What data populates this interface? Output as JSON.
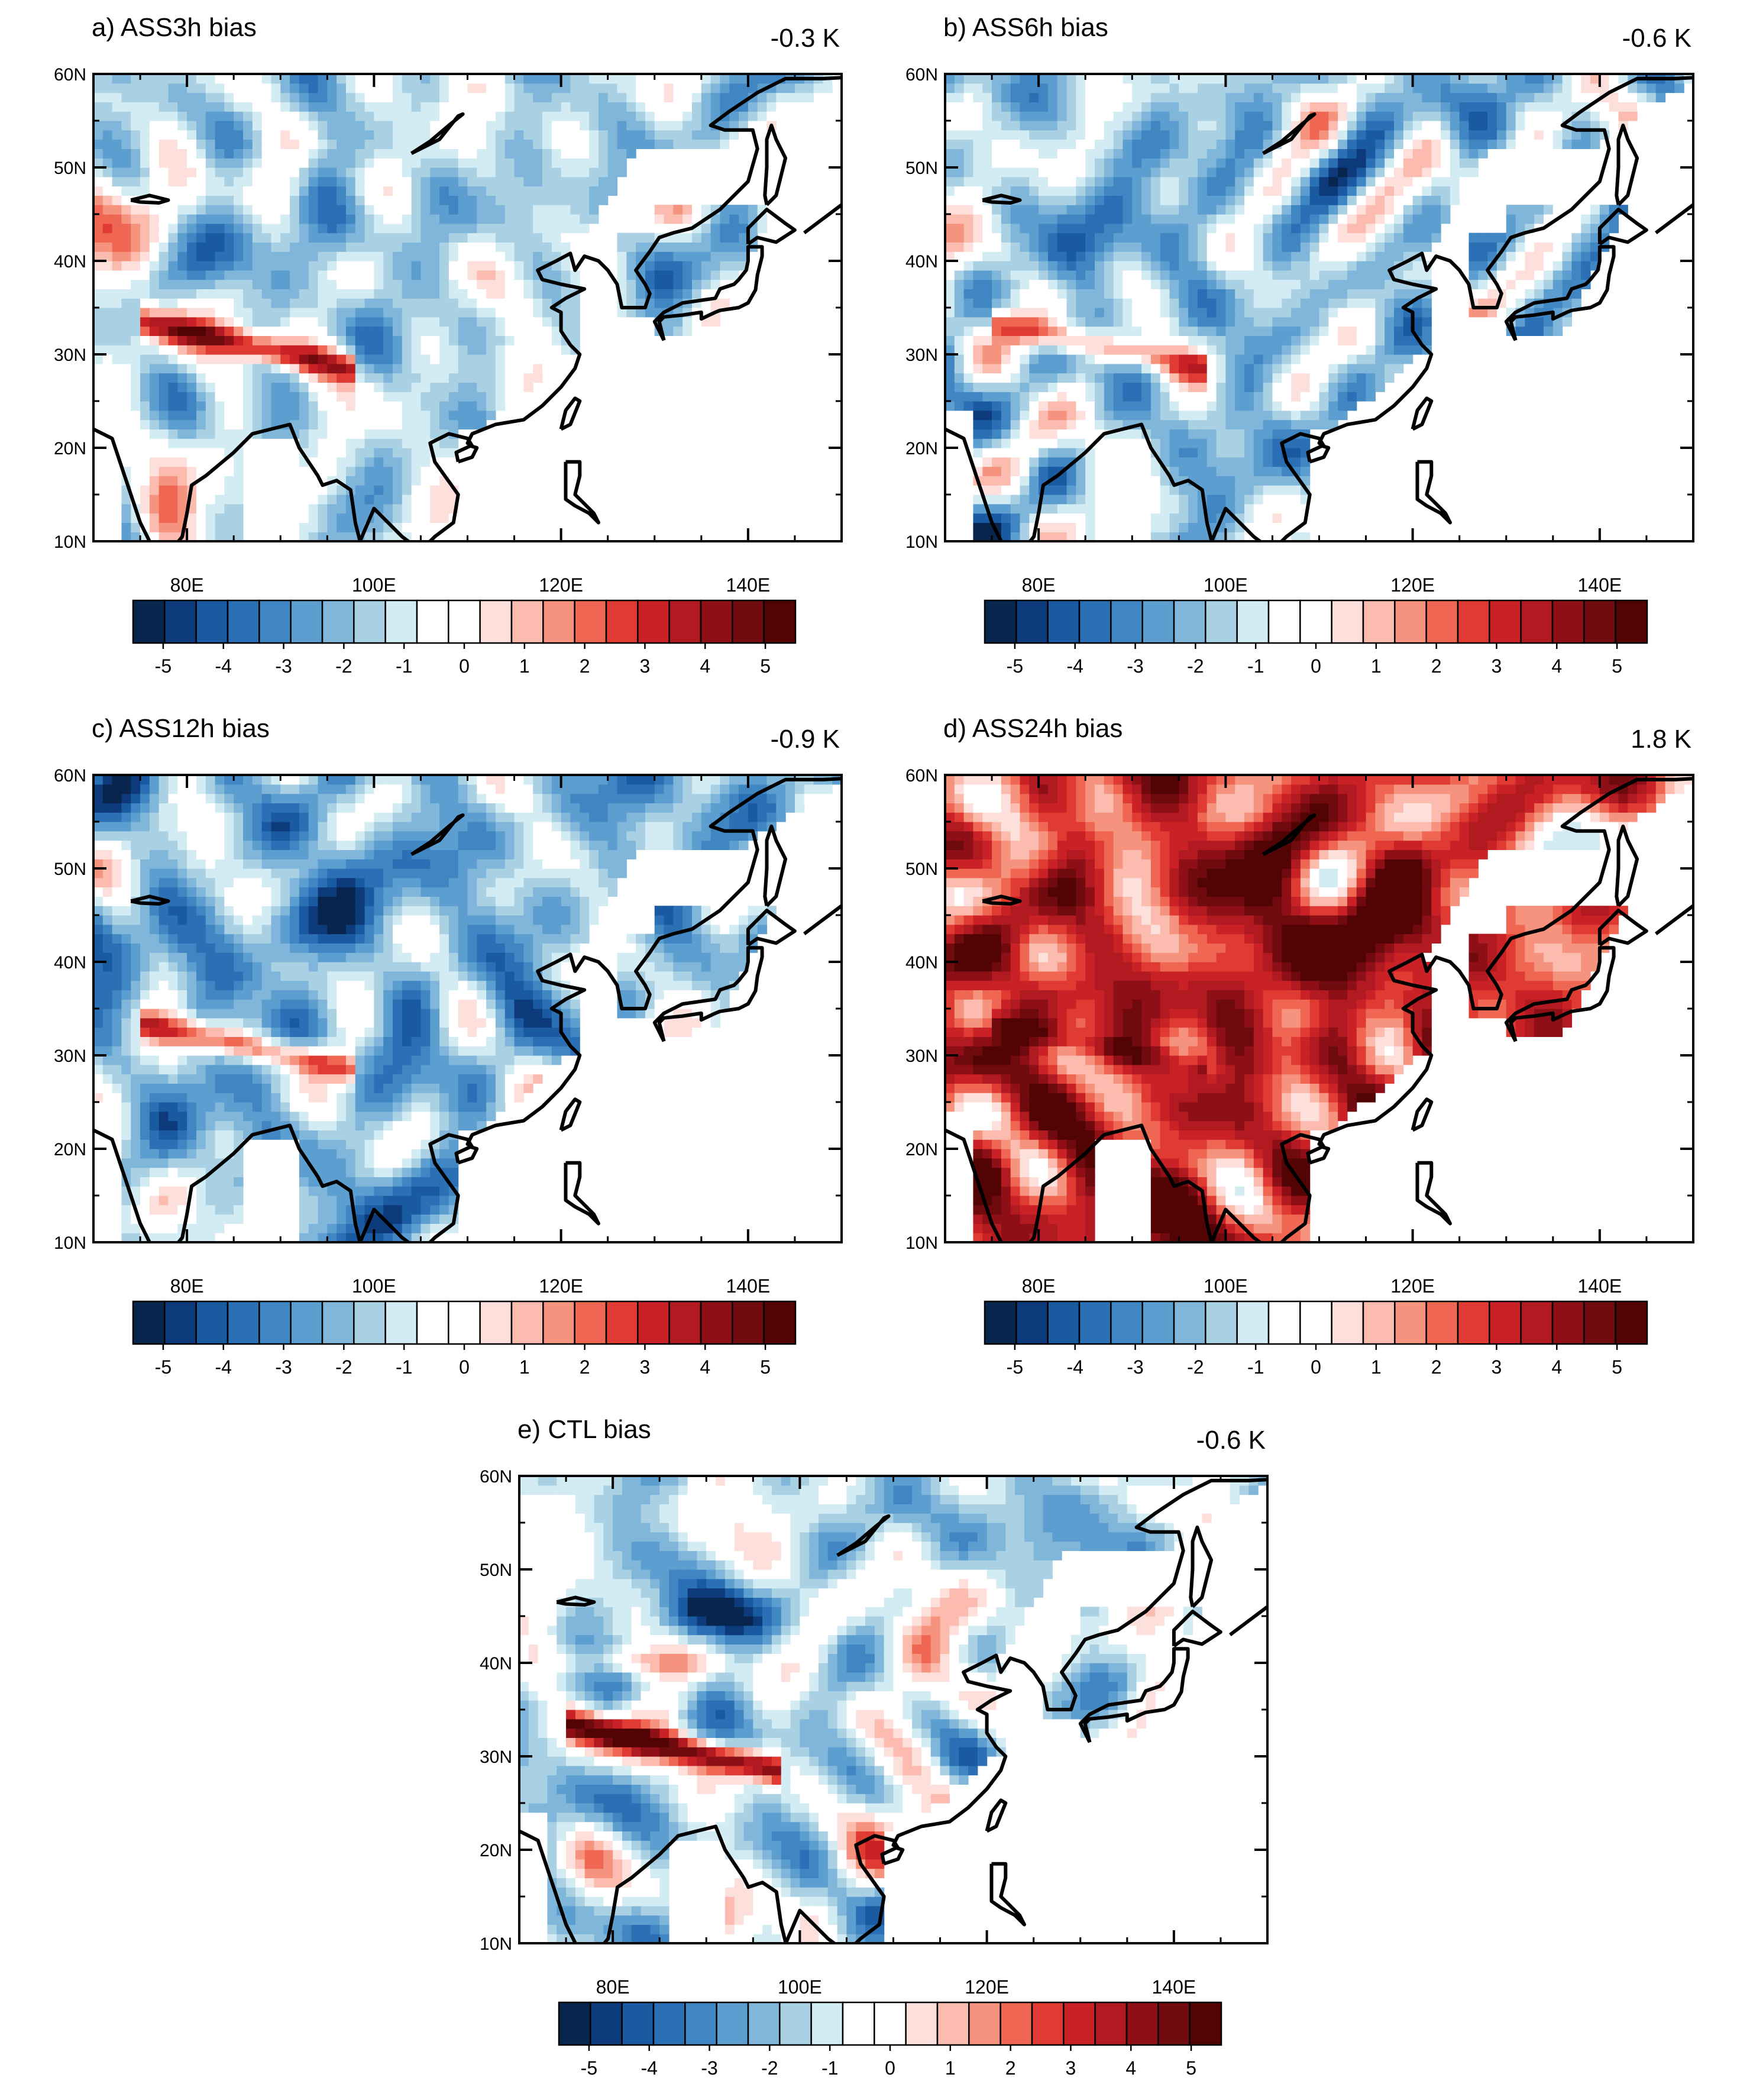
{
  "figure": {
    "panels": [
      {
        "title": "a) ASS3h bias",
        "mean_bias": "-0.3 K",
        "pattern": "ass3h"
      },
      {
        "title": "b) ASS6h bias",
        "mean_bias": "-0.6 K",
        "pattern": "ass6h"
      },
      {
        "title": "c) ASS12h bias",
        "mean_bias": "-0.9 K",
        "pattern": "ass12h"
      },
      {
        "title": "d) ASS24h bias",
        "mean_bias": "1.8 K",
        "pattern": "ass24h"
      },
      {
        "title": "e) CTL bias",
        "mean_bias": "-0.6 K",
        "pattern": "ctl"
      }
    ],
    "axes": {
      "lon_range": [
        70,
        150
      ],
      "lat_range": [
        10,
        60
      ],
      "lon_ticks": [
        "80E",
        "100E",
        "120E",
        "140E"
      ],
      "lon_tick_values": [
        80,
        100,
        120,
        140
      ],
      "lat_ticks": [
        "60N",
        "50N",
        "40N",
        "30N",
        "20N",
        "10N"
      ],
      "lat_tick_values": [
        60,
        50,
        40,
        30,
        20,
        10
      ]
    },
    "colorbar": {
      "labels": [
        "-5",
        "-4",
        "-3",
        "-2",
        "-1",
        "0",
        "1",
        "2",
        "3",
        "4",
        "5"
      ],
      "label_values": [
        -5,
        -4,
        -3,
        -2,
        -1,
        0,
        1,
        2,
        3,
        4,
        5
      ],
      "min": -5.5,
      "max": 5.5,
      "colors": [
        "#08254e",
        "#0d3a7a",
        "#1a5aa0",
        "#2b6fb5",
        "#3f86c2",
        "#5c9ecf",
        "#80b6d9",
        "#a9d1e3",
        "#d3ecf3",
        "#ffffff",
        "#ffffff",
        "#fde0dc",
        "#fbbcaf",
        "#f6937e",
        "#ef6752",
        "#e03b33",
        "#c92125",
        "#b01a20",
        "#8e0f16",
        "#6f0a0f",
        "#520405"
      ]
    },
    "chart_data": {
      "type": "map",
      "variable": "temperature bias",
      "unit": "K",
      "region": "East Asia, 70E-150E, 10N-60N",
      "panel_mean_biases": [
        {
          "panel": "ASS3h",
          "value": -0.3
        },
        {
          "panel": "ASS6h",
          "value": -0.6
        },
        {
          "panel": "ASS12h",
          "value": -0.9
        },
        {
          "panel": "ASS24h",
          "value": 1.8
        },
        {
          "panel": "CTL",
          "value": -0.6
        }
      ],
      "color_scale": {
        "min": -5,
        "max": 5,
        "step": 0.5,
        "cmap": "blue-white-red"
      }
    }
  }
}
